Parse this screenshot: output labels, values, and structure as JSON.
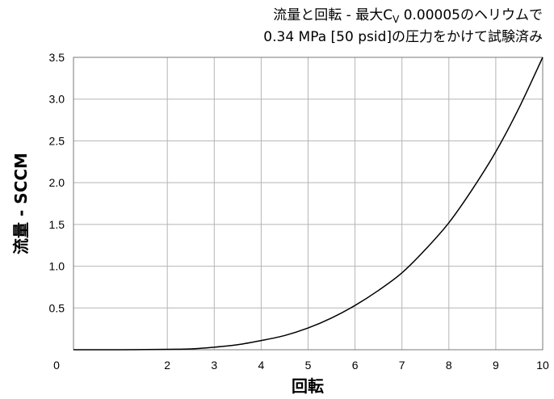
{
  "chart_data": {
    "type": "line",
    "title": {
      "line1_prefix": "流量と回転 - 最大C",
      "line1_subscript": "V",
      "line1_suffix": " 0.00005のヘリウムで",
      "line2": "0.34 MPa [50 psid]の圧力をかけて試験済み"
    },
    "xlabel": "回転",
    "ylabel": "流量 - SCCM",
    "xlim": [
      0,
      10
    ],
    "ylim": [
      0,
      3.5
    ],
    "x_ticks": [
      "0",
      "2",
      "3",
      "4",
      "5",
      "6",
      "7",
      "8",
      "9",
      "10"
    ],
    "y_ticks": [
      "0.5",
      "1.0",
      "1.5",
      "2.0",
      "2.5",
      "3.0",
      "3.5"
    ],
    "grid": true,
    "series": [
      {
        "x": [
          0,
          1,
          2,
          2.5,
          3,
          3.5,
          4,
          4.5,
          5,
          5.5,
          6,
          6.5,
          7,
          7.5,
          8,
          8.5,
          9,
          9.5,
          10
        ],
        "y": [
          0,
          0,
          0.005,
          0.01,
          0.03,
          0.06,
          0.11,
          0.17,
          0.26,
          0.38,
          0.53,
          0.71,
          0.92,
          1.2,
          1.52,
          1.92,
          2.37,
          2.9,
          3.5
        ]
      }
    ]
  }
}
